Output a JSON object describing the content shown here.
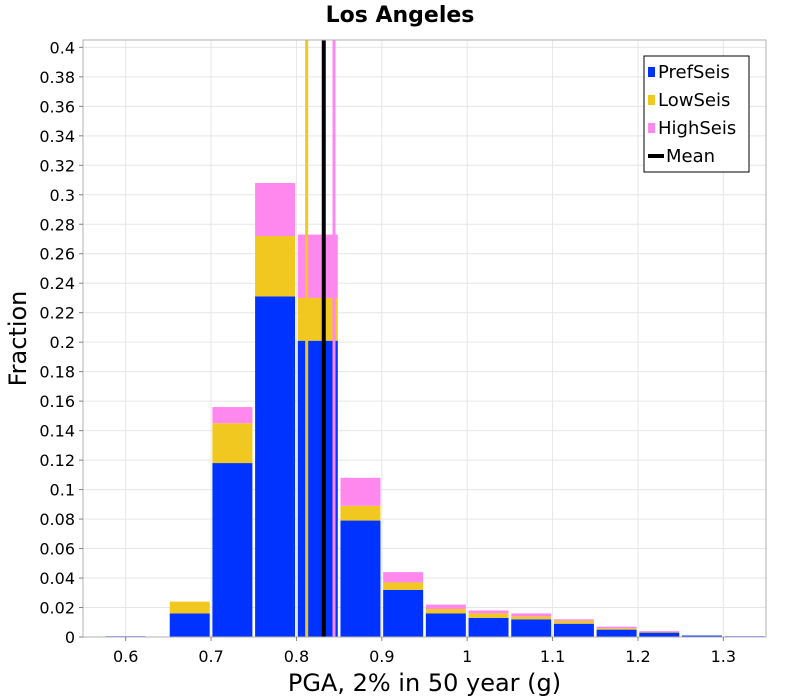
{
  "chart_data": {
    "type": "bar",
    "title": "Los Angeles",
    "xlabel": "PGA, 2% in 50 year (g)",
    "ylabel": "Fraction",
    "xlim": [
      0.55,
      1.35
    ],
    "ylim": [
      0,
      0.405
    ],
    "grid": true,
    "legend_position": "top-right",
    "stacked": true,
    "x": [
      0.6,
      0.675,
      0.725,
      0.775,
      0.825,
      0.875,
      0.925,
      0.975,
      1.025,
      1.075,
      1.125,
      1.175,
      1.225,
      1.275,
      1.325
    ],
    "series": [
      {
        "name": "PrefSeis",
        "color": "#0033ff",
        "values": [
          0.0005,
          0.016,
          0.118,
          0.231,
          0.201,
          0.079,
          0.032,
          0.016,
          0.013,
          0.012,
          0.009,
          0.005,
          0.003,
          0.001,
          0.0005
        ]
      },
      {
        "name": "LowSeis",
        "color": "#f0c820",
        "values": [
          0,
          0.008,
          0.027,
          0.041,
          0.029,
          0.01,
          0.005,
          0.003,
          0.003,
          0.002,
          0.002,
          0.001,
          0.0005,
          0,
          0
        ]
      },
      {
        "name": "HighSeis",
        "color": "#ff88ee",
        "values": [
          0,
          0,
          0.011,
          0.036,
          0.043,
          0.019,
          0.007,
          0.003,
          0.002,
          0.002,
          0.001,
          0.001,
          0.0005,
          0,
          0
        ]
      }
    ],
    "mean_lines": [
      {
        "name": "LowSeis",
        "color": "#f0c820",
        "x": 0.812
      },
      {
        "name": "HighSeis",
        "color": "#ff88ee",
        "x": 0.844
      },
      {
        "name": "Mean",
        "color": "#000000",
        "x": 0.832
      }
    ],
    "legend": [
      {
        "label": "PrefSeis",
        "color": "#0033ff",
        "kind": "box"
      },
      {
        "label": "LowSeis",
        "color": "#f0c820",
        "kind": "box"
      },
      {
        "label": "HighSeis",
        "color": "#ff88ee",
        "kind": "box"
      },
      {
        "label": "Mean",
        "color": "#000000",
        "kind": "line"
      }
    ],
    "y_ticks": [
      0,
      0.02,
      0.04,
      0.06,
      0.08,
      0.1,
      0.12,
      0.14,
      0.16,
      0.18,
      0.2,
      0.22,
      0.24,
      0.26,
      0.28,
      0.3,
      0.32,
      0.34,
      0.36,
      0.38,
      0.4
    ],
    "y_tick_labels": [
      "0",
      "0.02",
      "0.04",
      "0.06",
      "0.08",
      "0.1",
      "0.12",
      "0.14",
      "0.16",
      "0.18",
      "0.2",
      "0.22",
      "0.24",
      "0.26",
      "0.28",
      "0.3",
      "0.32",
      "0.34",
      "0.36",
      "0.38",
      "0.4"
    ],
    "x_ticks": [
      0.6,
      0.7,
      0.8,
      0.9,
      1.0,
      1.1,
      1.2,
      1.3
    ],
    "x_tick_labels": [
      "0.6",
      "0.7",
      "0.8",
      "0.9",
      "1",
      "1.1",
      "1.2",
      "1.3"
    ]
  }
}
